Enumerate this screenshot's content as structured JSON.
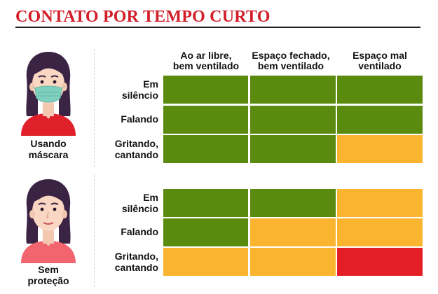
{
  "title": "CONTATO POR TEMPO CURTO",
  "colors": {
    "low": "#5a8a0e",
    "medium": "#fbb430",
    "high": "#e31e24",
    "title": "#d1202a"
  },
  "columns": [
    "Ao ar libre,\nbem ventilado",
    "Espaço fechado,\nbem ventilado",
    "Espaço mal\nventilado"
  ],
  "groups": [
    {
      "label": "Usando\nmáscara",
      "avatar_icon": "woman-with-mask-icon",
      "rows": [
        {
          "label": "Em\nsilêncio",
          "levels": [
            "low",
            "low",
            "low"
          ]
        },
        {
          "label": "Falando",
          "levels": [
            "low",
            "low",
            "low"
          ]
        },
        {
          "label": "Gritando,\ncantando",
          "levels": [
            "low",
            "low",
            "medium"
          ]
        }
      ]
    },
    {
      "label": "Sem\nproteção",
      "avatar_icon": "woman-without-mask-icon",
      "rows": [
        {
          "label": "Em\nsilêncio",
          "levels": [
            "low",
            "low",
            "medium"
          ]
        },
        {
          "label": "Falando",
          "levels": [
            "low",
            "medium",
            "medium"
          ]
        },
        {
          "label": "Gritando,\ncantando",
          "levels": [
            "medium",
            "medium",
            "high"
          ]
        }
      ]
    }
  ]
}
